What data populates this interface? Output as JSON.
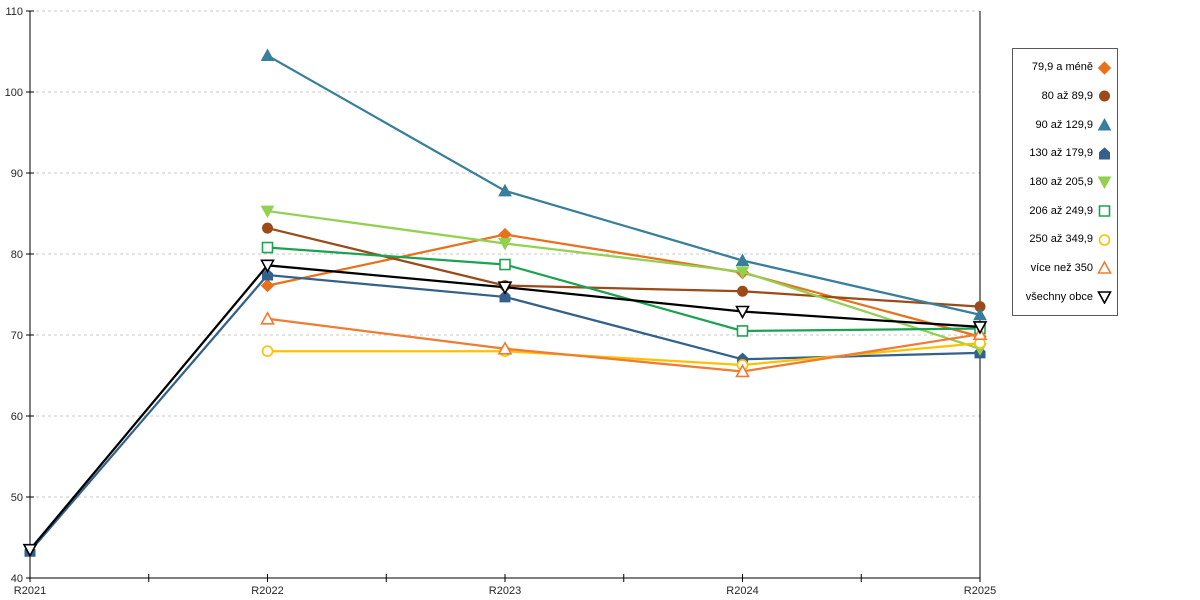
{
  "chart_data": {
    "type": "line",
    "categories": [
      "R2021",
      "R2022",
      "R2023",
      "R2024",
      "R2025"
    ],
    "series": [
      {
        "name": "79,9 a méně",
        "color": "#E8711C",
        "marker": "diamond",
        "filled": true,
        "values": [
          null,
          76.1,
          82.4,
          77.7,
          69.8
        ]
      },
      {
        "name": "80 až 89,9",
        "color": "#9B4A18",
        "marker": "circle",
        "filled": true,
        "values": [
          null,
          83.2,
          76.1,
          75.4,
          73.5
        ]
      },
      {
        "name": "90 až 129,9",
        "color": "#377F9B",
        "marker": "triangle-up",
        "filled": true,
        "values": [
          null,
          104.5,
          87.8,
          79.2,
          72.5
        ]
      },
      {
        "name": "130 až 179,9",
        "color": "#33618C",
        "marker": "pentagon",
        "filled": true,
        "values": [
          43.3,
          77.4,
          74.7,
          67.0,
          67.8
        ]
      },
      {
        "name": "180 až 205,9",
        "color": "#92D050",
        "marker": "triangle-down",
        "filled": true,
        "values": [
          null,
          85.3,
          81.3,
          77.8,
          68.3
        ]
      },
      {
        "name": "206 až 249,9",
        "color": "#1CA351",
        "marker": "square",
        "filled": false,
        "values": [
          null,
          80.8,
          78.7,
          70.5,
          70.8
        ]
      },
      {
        "name": "250 až 349,9",
        "color": "#FFC000",
        "marker": "circle",
        "filled": false,
        "values": [
          null,
          68.0,
          68.0,
          66.3,
          69.0
        ]
      },
      {
        "name": "více než 350",
        "color": "#ED7D31",
        "marker": "triangle-up",
        "filled": false,
        "values": [
          null,
          72.0,
          68.3,
          65.5,
          70.1
        ]
      },
      {
        "name": "všechny obce",
        "color": "#000000",
        "marker": "triangle-down",
        "filled": false,
        "values": [
          43.5,
          78.6,
          75.9,
          72.9,
          71.0
        ]
      }
    ],
    "title": "",
    "xlabel": "",
    "ylabel": "",
    "ylim": [
      40,
      110
    ],
    "y_ticks": [
      40,
      50,
      60,
      70,
      80,
      90,
      100,
      110
    ],
    "grid": "horizontal-dashed",
    "gridline_color": "#C9C9C9",
    "axis_color": "#000000",
    "legend_position": "right"
  }
}
